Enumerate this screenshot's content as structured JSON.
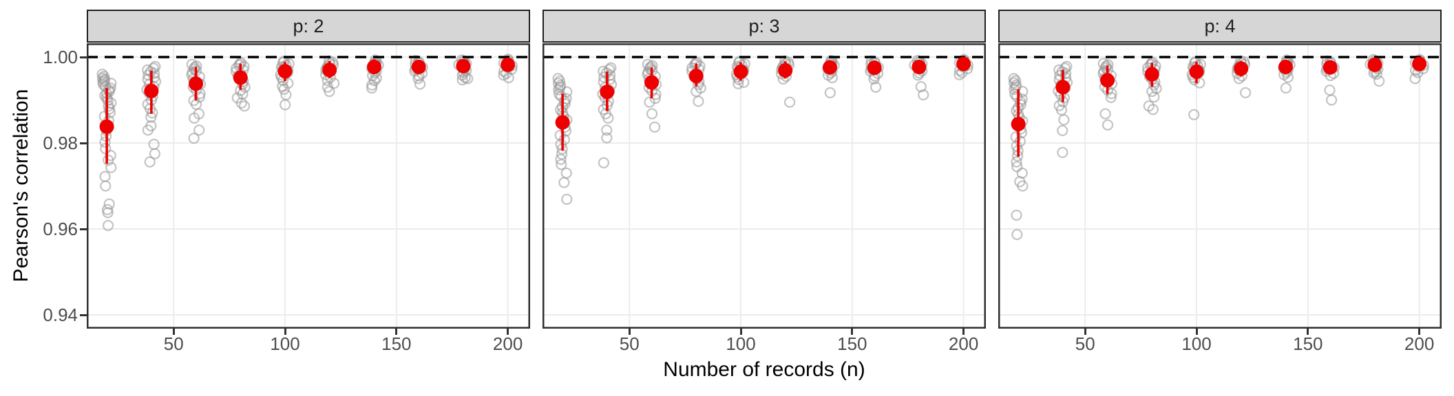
{
  "chart_data": {
    "type": "scatter",
    "title": "",
    "xlabel": "Number of records (n)",
    "ylabel": "Pearson's correlation",
    "x_ticks": [
      50,
      100,
      150,
      200
    ],
    "x_tick_labels": [
      "50",
      "100",
      "150",
      "200"
    ],
    "y_ticks": [
      1.0,
      0.98,
      0.96,
      0.94
    ],
    "y_tick_labels": [
      "1.00",
      "0.98",
      "0.96",
      "0.94"
    ],
    "xlim": [
      11,
      210
    ],
    "ylim": [
      0.9368,
      1.0032
    ],
    "reference_line_y": 1.0,
    "grid": true,
    "legend": "none",
    "n_values": [
      20,
      40,
      60,
      80,
      100,
      120,
      140,
      160,
      180,
      200
    ],
    "colors": {
      "mean_point": "#ed0000",
      "error_bar": "#ed0000",
      "gray_point": "#969696",
      "gray_opacity": 0.55,
      "strip_bg": "#d6d6d6",
      "strip_border": "#1f1f1f",
      "panel_border": "#2e2e2e",
      "grid_line": "#ececec",
      "reference_line": "#000000",
      "tick_label": "#4d4d4d",
      "axis_title": "#000000"
    },
    "facets": [
      {
        "label": "p: 2",
        "mean": [
          0.9838,
          0.9921,
          0.9938,
          0.9952,
          0.9967,
          0.997,
          0.9977,
          0.9977,
          0.9979,
          0.9982
        ],
        "ci_low": [
          0.9752,
          0.9868,
          0.9899,
          0.9924,
          0.9944,
          0.9951,
          0.996,
          0.9962,
          0.9965,
          0.9971
        ],
        "ci_high": [
          0.9928,
          0.9968,
          0.9977,
          0.9985,
          0.9989,
          0.9991,
          0.9995,
          0.9992,
          0.9993,
          0.9993
        ],
        "points": {
          "20": [
            0.996,
            0.9955,
            0.9951,
            0.9948,
            0.9945,
            0.9942,
            0.9939,
            0.9936,
            0.9932,
            0.9928,
            0.9924,
            0.992,
            0.9915,
            0.991,
            0.9905,
            0.9899,
            0.9893,
            0.9886,
            0.9879,
            0.9871,
            0.9862,
            0.9852,
            0.9841,
            0.9829,
            0.9816,
            0.9802,
            0.9787,
            0.9771,
            0.976,
            0.9743,
            0.9722,
            0.97,
            0.9658,
            0.9645,
            0.9638,
            0.9608
          ],
          "40": [
            0.9978,
            0.9974,
            0.997,
            0.9966,
            0.9962,
            0.9958,
            0.9953,
            0.9948,
            0.9943,
            0.9937,
            0.9931,
            0.9924,
            0.9917,
            0.9909,
            0.99,
            0.989,
            0.988,
            0.987,
            0.986,
            0.984,
            0.983,
            0.9797,
            0.9775,
            0.9756
          ],
          "60": [
            0.9983,
            0.9979,
            0.9976,
            0.9972,
            0.9968,
            0.9964,
            0.9959,
            0.9954,
            0.9949,
            0.9943,
            0.9937,
            0.993,
            0.9923,
            0.9915,
            0.9907,
            0.9899,
            0.989,
            0.9868,
            0.9858,
            0.983,
            0.9811
          ],
          "80": [
            0.9987,
            0.9984,
            0.9981,
            0.9978,
            0.9974,
            0.997,
            0.9966,
            0.9961,
            0.9956,
            0.995,
            0.9944,
            0.9937,
            0.993,
            0.9922,
            0.9914,
            0.9905,
            0.9893,
            0.9886
          ],
          "100": [
            0.999,
            0.9987,
            0.9984,
            0.9981,
            0.9977,
            0.9973,
            0.9969,
            0.9964,
            0.9959,
            0.9953,
            0.9946,
            0.9939,
            0.9932,
            0.9925,
            0.9912,
            0.9889
          ],
          "120": [
            0.9991,
            0.9988,
            0.9985,
            0.9982,
            0.9978,
            0.9974,
            0.997,
            0.9965,
            0.9959,
            0.9953,
            0.9946,
            0.9939,
            0.993,
            0.992
          ],
          "140": [
            0.9993,
            0.999,
            0.9987,
            0.9984,
            0.9981,
            0.9977,
            0.9973,
            0.9968,
            0.9963,
            0.9957,
            0.9951,
            0.9945,
            0.9935,
            0.9928
          ],
          "160": [
            0.9992,
            0.9989,
            0.9986,
            0.9983,
            0.998,
            0.9976,
            0.9972,
            0.9967,
            0.9962,
            0.9956,
            0.995,
            0.9937
          ],
          "180": [
            0.9993,
            0.9991,
            0.9988,
            0.9985,
            0.9982,
            0.9978,
            0.9974,
            0.9969,
            0.9964,
            0.9958,
            0.9952,
            0.995,
            0.9947
          ],
          "200": [
            0.9995,
            0.9992,
            0.9989,
            0.9986,
            0.9983,
            0.998,
            0.9976,
            0.9972,
            0.9967,
            0.9962,
            0.9958,
            0.9952
          ]
        }
      },
      {
        "label": "p: 3",
        "mean": [
          0.9848,
          0.9919,
          0.9941,
          0.9956,
          0.9966,
          0.9969,
          0.9976,
          0.9975,
          0.9977,
          0.9984
        ],
        "ci_low": [
          0.9782,
          0.9874,
          0.9904,
          0.9932,
          0.9945,
          0.995,
          0.9961,
          0.996,
          0.9963,
          0.9973
        ],
        "ci_high": [
          0.9915,
          0.9966,
          0.9976,
          0.9985,
          0.9988,
          0.999,
          0.9992,
          0.9991,
          0.9992,
          0.9994
        ],
        "points": {
          "20": [
            0.995,
            0.9944,
            0.9939,
            0.9934,
            0.9929,
            0.9924,
            0.9919,
            0.9914,
            0.9909,
            0.9903,
            0.9897,
            0.9891,
            0.9884,
            0.9877,
            0.987,
            0.9862,
            0.9854,
            0.9846,
            0.9837,
            0.9828,
            0.9818,
            0.9808,
            0.9797,
            0.9786,
            0.9774,
            0.9762,
            0.975,
            0.973,
            0.9708,
            0.9669
          ],
          "40": [
            0.9975,
            0.9971,
            0.9967,
            0.9963,
            0.9958,
            0.9953,
            0.9948,
            0.9942,
            0.9936,
            0.9929,
            0.9922,
            0.9914,
            0.9906,
            0.9897,
            0.9888,
            0.9878,
            0.9868,
            0.9858,
            0.983,
            0.9812,
            0.9754
          ],
          "60": [
            0.9983,
            0.998,
            0.9977,
            0.9973,
            0.9969,
            0.9965,
            0.996,
            0.9955,
            0.9949,
            0.9943,
            0.9936,
            0.9929,
            0.9921,
            0.9913,
            0.9904,
            0.9895,
            0.9868,
            0.9837
          ],
          "80": [
            0.9988,
            0.9985,
            0.9982,
            0.9979,
            0.9975,
            0.9971,
            0.9967,
            0.9962,
            0.9956,
            0.995,
            0.9943,
            0.9936,
            0.9928,
            0.992,
            0.9897
          ],
          "100": [
            0.999,
            0.9987,
            0.9984,
            0.9981,
            0.9978,
            0.9974,
            0.997,
            0.9965,
            0.996,
            0.9954,
            0.9948,
            0.9941,
            0.9938
          ],
          "120": [
            0.9991,
            0.9988,
            0.9985,
            0.9982,
            0.9979,
            0.9975,
            0.9971,
            0.9966,
            0.9961,
            0.9955,
            0.9949,
            0.9895
          ],
          "140": [
            0.9992,
            0.999,
            0.9987,
            0.9984,
            0.9981,
            0.9977,
            0.9973,
            0.9968,
            0.9963,
            0.9958,
            0.9952,
            0.9917
          ],
          "160": [
            0.9991,
            0.9989,
            0.9986,
            0.9983,
            0.998,
            0.9976,
            0.9972,
            0.9967,
            0.9962,
            0.9956,
            0.9949,
            0.993
          ],
          "180": [
            0.9992,
            0.999,
            0.9987,
            0.9984,
            0.9981,
            0.9977,
            0.9973,
            0.9968,
            0.9963,
            0.9958,
            0.9931,
            0.9912
          ],
          "200": [
            0.9994,
            0.9992,
            0.999,
            0.9987,
            0.9984,
            0.9981,
            0.9977,
            0.9973,
            0.9969,
            0.9964,
            0.9959
          ]
        }
      },
      {
        "label": "p: 4",
        "mean": [
          0.9844,
          0.993,
          0.9946,
          0.996,
          0.9966,
          0.9973,
          0.9977,
          0.9976,
          0.9982,
          0.9984
        ],
        "ci_low": [
          0.9768,
          0.9895,
          0.9914,
          0.9931,
          0.9939,
          0.9955,
          0.9962,
          0.996,
          0.997,
          0.9974
        ],
        "ci_high": [
          0.9925,
          0.997,
          0.998,
          0.9987,
          0.9989,
          0.9991,
          0.9993,
          0.9991,
          0.9994,
          0.9994
        ],
        "points": {
          "20": [
            0.995,
            0.9945,
            0.994,
            0.9935,
            0.993,
            0.9925,
            0.992,
            0.9914,
            0.9908,
            0.9902,
            0.9896,
            0.9889,
            0.9882,
            0.9875,
            0.9867,
            0.9859,
            0.9851,
            0.9842,
            0.9833,
            0.9824,
            0.9814,
            0.9804,
            0.9793,
            0.9782,
            0.977,
            0.9756,
            0.9745,
            0.973,
            0.971,
            0.97,
            0.9632,
            0.9587
          ],
          "40": [
            0.9978,
            0.9974,
            0.997,
            0.9966,
            0.9962,
            0.9957,
            0.9952,
            0.9947,
            0.9941,
            0.9935,
            0.9928,
            0.9921,
            0.9913,
            0.9905,
            0.9896,
            0.9887,
            0.9877,
            0.9854,
            0.9829,
            0.9778
          ],
          "60": [
            0.9985,
            0.9982,
            0.9979,
            0.9975,
            0.9971,
            0.9967,
            0.9962,
            0.9957,
            0.9951,
            0.9945,
            0.9938,
            0.9931,
            0.9923,
            0.9915,
            0.9906,
            0.9868,
            0.9842
          ],
          "80": [
            0.9988,
            0.9985,
            0.9982,
            0.9979,
            0.9975,
            0.9971,
            0.9966,
            0.9961,
            0.9955,
            0.9949,
            0.9942,
            0.9935,
            0.9927,
            0.992,
            0.9907,
            0.9886,
            0.9878
          ],
          "100": [
            0.9989,
            0.9986,
            0.9983,
            0.998,
            0.9977,
            0.9973,
            0.9969,
            0.9964,
            0.9959,
            0.9953,
            0.9947,
            0.994,
            0.9866
          ],
          "120": [
            0.9991,
            0.9989,
            0.9986,
            0.9983,
            0.998,
            0.9976,
            0.9972,
            0.9967,
            0.9962,
            0.9956,
            0.995,
            0.9917
          ],
          "140": [
            0.9993,
            0.9991,
            0.9988,
            0.9985,
            0.9982,
            0.9978,
            0.9974,
            0.9969,
            0.9964,
            0.9959,
            0.9953,
            0.9928
          ],
          "160": [
            0.9991,
            0.9989,
            0.9986,
            0.9983,
            0.998,
            0.9976,
            0.9972,
            0.9967,
            0.9962,
            0.9957,
            0.9923,
            0.99
          ],
          "180": [
            0.9994,
            0.9992,
            0.9989,
            0.9986,
            0.9983,
            0.998,
            0.9976,
            0.9972,
            0.9967,
            0.9963,
            0.996,
            0.9944
          ],
          "200": [
            0.9994,
            0.9992,
            0.999,
            0.9987,
            0.9984,
            0.9981,
            0.9977,
            0.9973,
            0.9969,
            0.9964,
            0.995
          ]
        }
      }
    ]
  }
}
